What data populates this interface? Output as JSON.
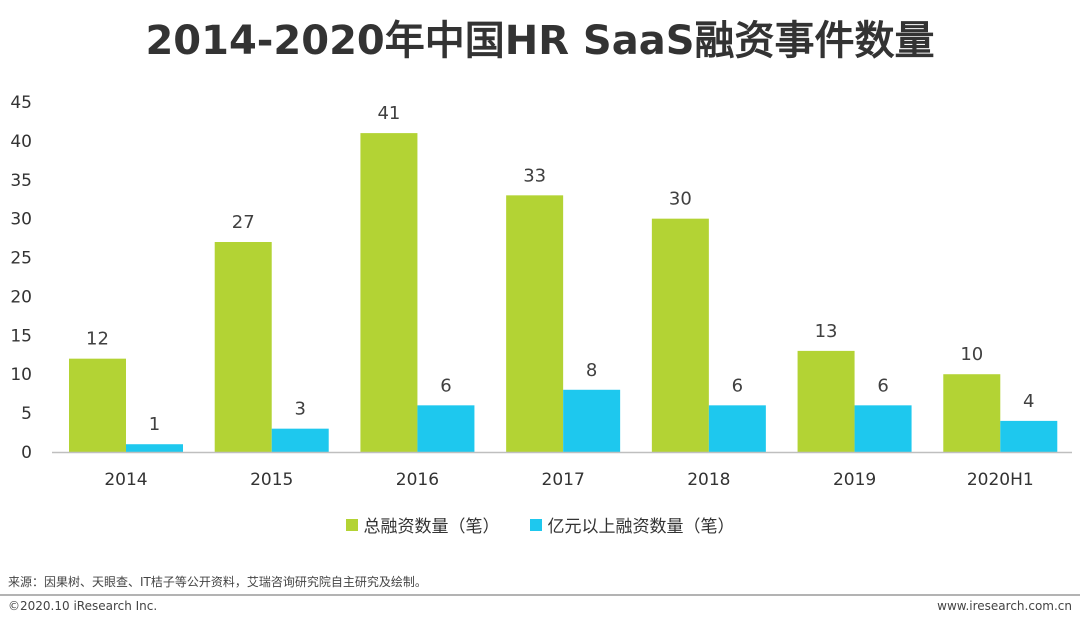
{
  "title": "2014-2020年中国HR SaaS融资事件数量",
  "chart_data": {
    "type": "bar",
    "categories": [
      "2014",
      "2015",
      "2016",
      "2017",
      "2018",
      "2019",
      "2020H1"
    ],
    "series": [
      {
        "name": "总融资数量（笔）",
        "values": [
          12,
          27,
          41,
          33,
          30,
          13,
          10
        ],
        "color": "#b3d334"
      },
      {
        "name": "亿元以上融资数量（笔）",
        "values": [
          1,
          3,
          6,
          8,
          6,
          6,
          4
        ],
        "color": "#1ec8ee"
      }
    ],
    "ylim": [
      0,
      45
    ],
    "yticks": [
      "0",
      "5",
      "10",
      "15",
      "20",
      "25",
      "30",
      "35",
      "40",
      "45"
    ],
    "grid": false,
    "legend": "bottom"
  },
  "footer": {
    "source": "来源：因果树、天眼查、IT桔子等公开资料，艾瑞咨询研究院自主研究及绘制。",
    "copyright": "©2020.10 iResearch Inc.",
    "website": "www.iresearch.com.cn"
  }
}
